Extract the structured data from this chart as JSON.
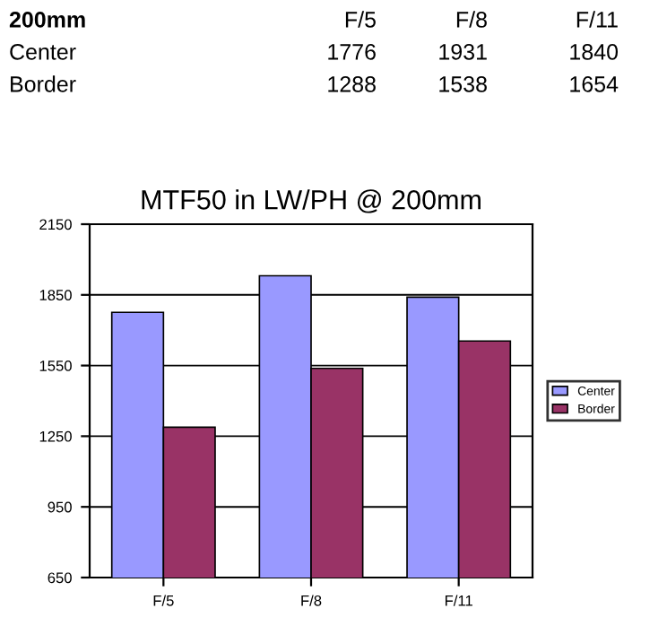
{
  "chart_data": [
    {
      "type": "other",
      "annotations": [
        "200mm",
        "F/5",
        "F/8",
        "F/11",
        "Center",
        "1776",
        "1931",
        "1840",
        "Border",
        "1288",
        "1538",
        "1654"
      ]
    },
    {
      "type": "bar",
      "title": "MTF50 in LW/PH @ 200mm",
      "categories": [
        "F/5",
        "F/8",
        "F/11"
      ],
      "series": [
        {
          "name": "Center",
          "color": "#9999ff",
          "values": [
            1776,
            1931,
            1840
          ]
        },
        {
          "name": "Border",
          "color": "#993366",
          "values": [
            1288,
            1538,
            1654
          ]
        }
      ],
      "ylim": [
        650,
        2150
      ],
      "yticks": [
        650,
        950,
        1250,
        1550,
        1850,
        2150
      ],
      "grid": "y",
      "legend": "right"
    }
  ]
}
